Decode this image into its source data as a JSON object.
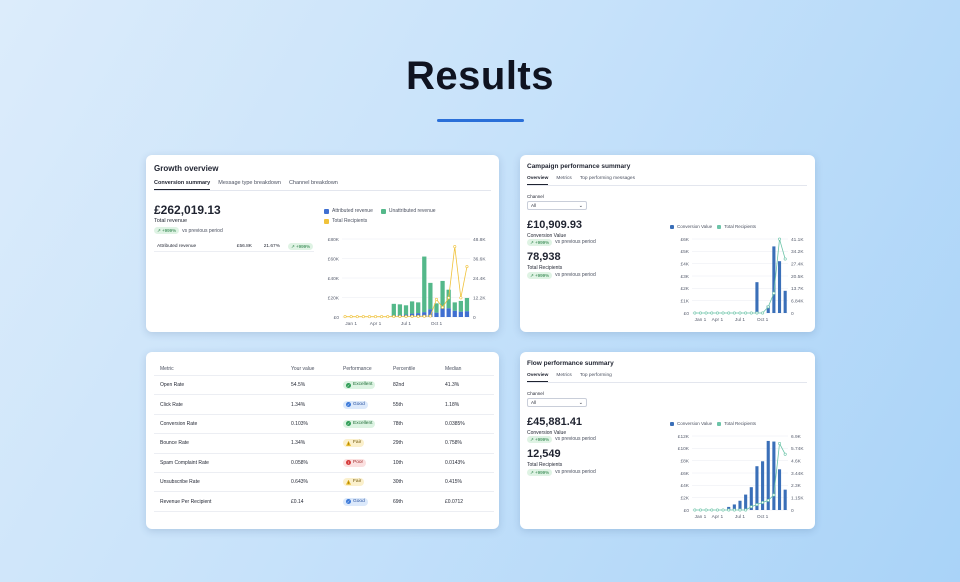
{
  "page": {
    "title": "Results"
  },
  "growth": {
    "title": "Growth overview",
    "tabs": [
      "Conversion summary",
      "Message type breakdown",
      "Channel breakdown"
    ],
    "total_revenue": "£262,019.13",
    "total_revenue_label": "Total revenue",
    "chip": "↗ +999%",
    "vs_text": "vs previous period",
    "attributed": {
      "label": "Attributed revenue",
      "value": "£56.8K",
      "pct": "21.67%",
      "chip": "↗ +999%"
    },
    "legend": [
      "Attributed revenue",
      "Unattributed revenue",
      "Total Recipients"
    ],
    "colors": {
      "attributed": "#3f6fd1",
      "unattributed": "#54b88a",
      "recipients": "#f0c23a"
    }
  },
  "campaign": {
    "title": "Campaign performance summary",
    "tabs": [
      "Overview",
      "Metrics",
      "Top performing messages"
    ],
    "channel_label": "Channel",
    "channel_value": "All",
    "conversion_value": "£10,909.93",
    "conversion_label": "Conversion Value",
    "chip1": "↗ +999%",
    "vs_text": "vs previous period",
    "recipients": "78,938",
    "recipients_label": "Total Recipients",
    "chip2": "↗ +999%",
    "legend": [
      "Conversion Value",
      "Total Recipients"
    ],
    "colors": {
      "bar": "#3a6fb8",
      "line": "#6cc4a8"
    }
  },
  "flow": {
    "title": "Flow performance summary",
    "tabs": [
      "Overview",
      "Metrics",
      "Top performing"
    ],
    "channel_label": "Channel",
    "channel_value": "All",
    "conversion_value": "£45,881.41",
    "conversion_label": "Conversion Value",
    "chip1": "↗ +999%",
    "vs_text": "vs previous period",
    "recipients": "12,549",
    "recipients_label": "Total Recipients",
    "chip2": "↗ +999%",
    "legend": [
      "Conversion Value",
      "Total Recipients"
    ]
  },
  "metrics_table": {
    "headers": [
      "Metric",
      "Your value",
      "Performance",
      "Percentile",
      "Median"
    ],
    "rows": [
      {
        "metric": "Open Rate",
        "value": "54.5%",
        "performance": "Excellent",
        "level": "excellent",
        "percentile": "82nd",
        "median": "41.3%"
      },
      {
        "metric": "Click Rate",
        "value": "1.34%",
        "performance": "Good",
        "level": "good",
        "percentile": "55th",
        "median": "1.18%"
      },
      {
        "metric": "Conversion Rate",
        "value": "0.103%",
        "performance": "Excellent",
        "level": "excellent",
        "percentile": "78th",
        "median": "0.0385%"
      },
      {
        "metric": "Bounce Rate",
        "value": "1.34%",
        "performance": "Fair",
        "level": "fair",
        "percentile": "29th",
        "median": "0.758%"
      },
      {
        "metric": "Spam Complaint Rate",
        "value": "0.058%",
        "performance": "Poor",
        "level": "poor",
        "percentile": "10th",
        "median": "0.0143%"
      },
      {
        "metric": "Unsubscribe Rate",
        "value": "0.643%",
        "performance": "Fair",
        "level": "fair",
        "percentile": "30th",
        "median": "0.415%"
      },
      {
        "metric": "Revenue Per Recipient",
        "value": "£0.14",
        "performance": "Good",
        "level": "good",
        "percentile": "69th",
        "median": "£0.0712"
      }
    ]
  },
  "chart_data": [
    {
      "type": "bar",
      "stacked": true,
      "x_tick_labels": [
        "Jan 1",
        "Apr 1",
        "Jul 1",
        "Oct 1"
      ],
      "y_tick_labels": [
        "£0",
        "£20K",
        "£40K",
        "£60K",
        "£80K"
      ],
      "y2_tick_labels": [
        "0",
        "12.2K",
        "24.4K",
        "36.6K",
        "48.8K"
      ],
      "ylim": [
        0,
        80000
      ],
      "y2lim": [
        0,
        48800
      ],
      "series": [
        {
          "name": "Attributed revenue",
          "values": [
            0,
            0,
            0,
            0,
            0,
            0,
            0,
            0,
            1500,
            2000,
            2500,
            3500,
            4000,
            5000,
            8000,
            4500,
            9000,
            9000,
            6500,
            5500,
            6000
          ]
        },
        {
          "name": "Unattributed revenue",
          "values": [
            0,
            0,
            0,
            0,
            0,
            0,
            0,
            0,
            12000,
            11000,
            9500,
            12500,
            11000,
            57000,
            27000,
            9500,
            28000,
            19000,
            8500,
            11000,
            13500
          ]
        },
        {
          "name": "Total Recipients",
          "type": "line",
          "values": [
            200,
            200,
            200,
            200,
            200,
            200,
            200,
            200,
            300,
            300,
            300,
            400,
            400,
            500,
            600,
            11000,
            6000,
            12000,
            44000,
            12000,
            31500
          ]
        }
      ]
    },
    {
      "type": "bar",
      "x_tick_labels": [
        "Jan 1",
        "Apr 1",
        "Jul 1",
        "Oct 1"
      ],
      "y_tick_labels": [
        "£0",
        "£1K",
        "£2K",
        "£3K",
        "£4K",
        "£5K",
        "£6K"
      ],
      "y2_tick_labels": [
        "0",
        "6.84K",
        "13.7K",
        "20.5K",
        "27.4K",
        "34.2K",
        "41.1K"
      ],
      "ylim": [
        0,
        6000
      ],
      "y2lim": [
        0,
        41100
      ],
      "series": [
        {
          "name": "Conversion Value",
          "values": [
            0,
            0,
            0,
            0,
            0,
            0,
            0,
            0,
            0,
            0,
            0,
            2500,
            0,
            600,
            5400,
            4200,
            1800
          ]
        },
        {
          "name": "Total Recipients",
          "type": "line",
          "values": [
            0,
            0,
            0,
            0,
            0,
            0,
            0,
            0,
            0,
            0,
            0,
            0,
            0,
            3400,
            11000,
            41000,
            30000
          ]
        }
      ]
    },
    {
      "type": "bar",
      "x_tick_labels": [
        "Jan 1",
        "Apr 1",
        "Jul 1",
        "Oct 1"
      ],
      "y_tick_labels": [
        "£0",
        "£2K",
        "£4K",
        "£6K",
        "£8K",
        "£10K",
        "£12K"
      ],
      "y2_tick_labels": [
        "0",
        "1.15K",
        "2.3K",
        "3.44K",
        "4.6K",
        "5.74K",
        "6.9K"
      ],
      "ylim": [
        0,
        12000
      ],
      "y2lim": [
        0,
        6900
      ],
      "series": [
        {
          "name": "Conversion Value",
          "values": [
            0,
            0,
            0,
            0,
            0,
            0,
            500,
            900,
            1500,
            2500,
            3700,
            7100,
            7900,
            11200,
            11100,
            6600,
            3300
          ]
        },
        {
          "name": "Total Recipients",
          "type": "line",
          "values": [
            0,
            0,
            0,
            0,
            0,
            0,
            0,
            0,
            0,
            0,
            300,
            500,
            700,
            900,
            1400,
            6200,
            5200
          ]
        }
      ]
    }
  ]
}
